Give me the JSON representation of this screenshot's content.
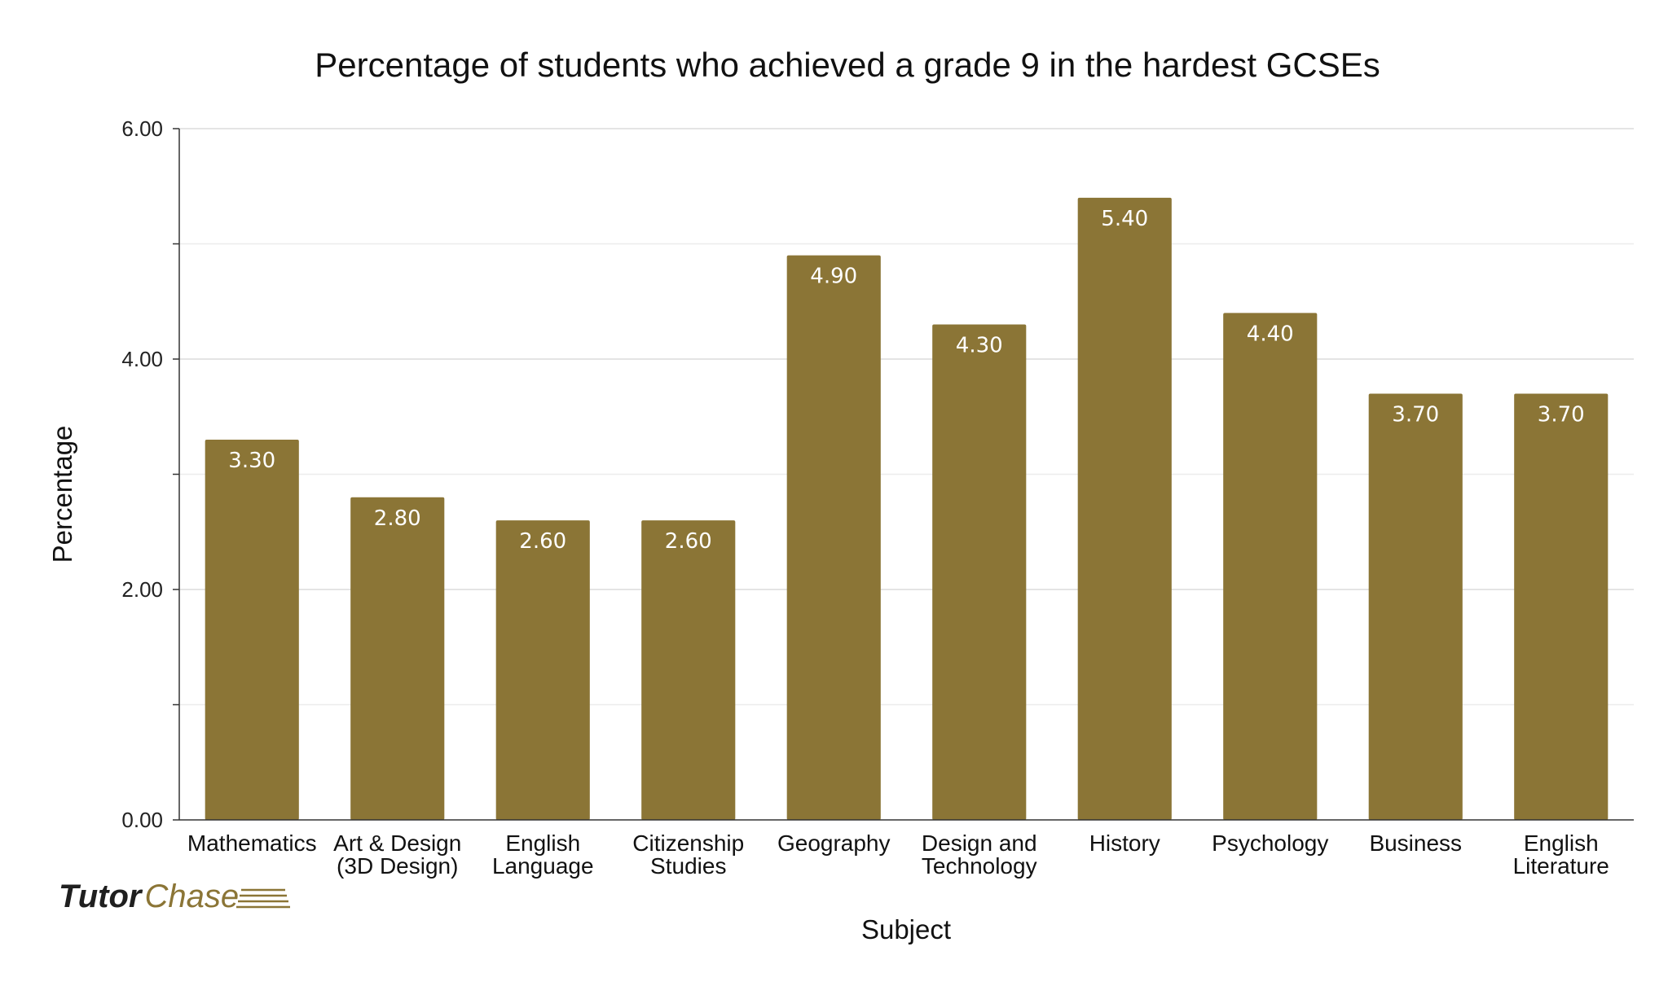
{
  "chart_data": {
    "type": "bar",
    "title": "Percentage of students who achieved a grade 9 in the hardest GCSEs",
    "xlabel": "Subject",
    "ylabel": "Percentage",
    "ylim": [
      0,
      6
    ],
    "yticks": [
      "0.00",
      "2.00",
      "4.00",
      "6.00"
    ],
    "categories": [
      [
        "Mathematics"
      ],
      [
        "Art & Design",
        "(3D Design)"
      ],
      [
        "English",
        "Language"
      ],
      [
        "Citizenship",
        "Studies"
      ],
      [
        "Geography"
      ],
      [
        "Design and",
        "Technology"
      ],
      [
        "History"
      ],
      [
        "Psychology"
      ],
      [
        "Business"
      ],
      [
        "English",
        "Literature"
      ]
    ],
    "values": [
      3.3,
      2.8,
      2.6,
      2.6,
      4.9,
      4.3,
      5.4,
      4.4,
      3.7,
      3.7
    ],
    "value_labels": [
      "3.30",
      "2.80",
      "2.60",
      "2.60",
      "4.90",
      "4.30",
      "5.40",
      "4.40",
      "3.70",
      "3.70"
    ],
    "bar_color": "#8b7536",
    "grid": true,
    "legend": "none"
  },
  "logo": {
    "part1": "Tutor",
    "part2": "Chase"
  }
}
